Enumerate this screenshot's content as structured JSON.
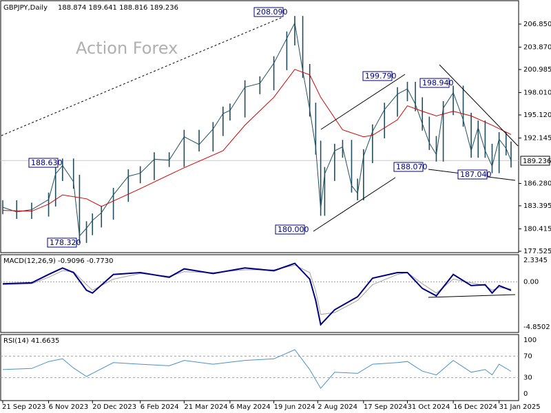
{
  "watermark": "Action Forex",
  "colors": {
    "price": "#1f4e5f",
    "ma": "#d40000",
    "macd": "#000080",
    "signal": "#a0a0a0",
    "rsi": "#4a90c8",
    "annotation": "#000080"
  },
  "chart_data": [
    {
      "type": "line",
      "panel": "price",
      "title": "GBPJPY,Daily",
      "ohlc_header": "188.874 189.641 188.816 189.236",
      "current_price": "189.236",
      "y_ticks": [
        "206.850",
        "203.870",
        "200.985",
        "198.010",
        "195.120",
        "192.145",
        "189.236",
        "186.280",
        "183.395",
        "180.415",
        "177.525"
      ],
      "ylim": [
        177.525,
        206.85
      ],
      "x_ticks": [
        "21 Sep 2023",
        "6 Nov 2023",
        "20 Dec 2023",
        "6 Feb 2024",
        "21 Mar 2024",
        "6 May 2024",
        "19 Jun 2024",
        "2 Aug 2024",
        "17 Sep 2024",
        "31 Oct 2024",
        "16 Dec 2024",
        "31 Jan 2025"
      ],
      "close": [
        {
          "x": "21 Sep 2023",
          "y": 183.2
        },
        {
          "x": "5 Oct 2023",
          "y": 182.6
        },
        {
          "x": "20 Oct 2023",
          "y": 182.9
        },
        {
          "x": "6 Nov 2023",
          "y": 184.2
        },
        {
          "x": "13 Nov 2023",
          "y": 187.5
        },
        {
          "x": "20 Nov 2023",
          "y": 188.6
        },
        {
          "x": "1 Dec 2023",
          "y": 186.5
        },
        {
          "x": "7 Dec 2023",
          "y": 179.5
        },
        {
          "x": "14 Dec 2023",
          "y": 180.5
        },
        {
          "x": "20 Dec 2023",
          "y": 181.5
        },
        {
          "x": "29 Dec 2023",
          "y": 182.5
        },
        {
          "x": "10 Jan 2024",
          "y": 184.8
        },
        {
          "x": "25 Jan 2024",
          "y": 187.2
        },
        {
          "x": "6 Feb 2024",
          "y": 187.6
        },
        {
          "x": "20 Feb 2024",
          "y": 189.4
        },
        {
          "x": "6 Mar 2024",
          "y": 189.3
        },
        {
          "x": "21 Mar 2024",
          "y": 192.3
        },
        {
          "x": "5 Apr 2024",
          "y": 191.3
        },
        {
          "x": "19 Apr 2024",
          "y": 193.3
        },
        {
          "x": "29 Apr 2024",
          "y": 195.3
        },
        {
          "x": "6 May 2024",
          "y": 195.7
        },
        {
          "x": "21 May 2024",
          "y": 198.7
        },
        {
          "x": "5 Jun 2024",
          "y": 199.2
        },
        {
          "x": "19 Jun 2024",
          "y": 201.8
        },
        {
          "x": "2 Jul 2024",
          "y": 205.0
        },
        {
          "x": "10 Jul 2024",
          "y": 207.0
        },
        {
          "x": "18 Jul 2024",
          "y": 200.8
        },
        {
          "x": "25 Jul 2024",
          "y": 195.8
        },
        {
          "x": "31 Jul 2024",
          "y": 190.9
        },
        {
          "x": "5 Aug 2024",
          "y": 183.0
        },
        {
          "x": "9 Aug 2024",
          "y": 187.5
        },
        {
          "x": "19 Aug 2024",
          "y": 190.5
        },
        {
          "x": "27 Aug 2024",
          "y": 191.0
        },
        {
          "x": "5 Sep 2024",
          "y": 186.0
        },
        {
          "x": "11 Sep 2024",
          "y": 185.0
        },
        {
          "x": "17 Sep 2024",
          "y": 189.8
        },
        {
          "x": "26 Sep 2024",
          "y": 193.0
        },
        {
          "x": "8 Oct 2024",
          "y": 195.8
        },
        {
          "x": "21 Oct 2024",
          "y": 197.8
        },
        {
          "x": "31 Oct 2024",
          "y": 198.5
        },
        {
          "x": "8 Nov 2024",
          "y": 196.5
        },
        {
          "x": "15 Nov 2024",
          "y": 194.0
        },
        {
          "x": "22 Nov 2024",
          "y": 191.5
        },
        {
          "x": "29 Nov 2024",
          "y": 190.0
        },
        {
          "x": "6 Dec 2024",
          "y": 196.0
        },
        {
          "x": "16 Dec 2024",
          "y": 198.0
        },
        {
          "x": "26 Dec 2024",
          "y": 194.5
        },
        {
          "x": "3 Jan 2025",
          "y": 190.5
        },
        {
          "x": "10 Jan 2025",
          "y": 193.5
        },
        {
          "x": "17 Jan 2025",
          "y": 190.5
        },
        {
          "x": "24 Jan 2025",
          "y": 188.5
        },
        {
          "x": "31 Jan 2025",
          "y": 192.0
        },
        {
          "x": "7 Feb 2025",
          "y": 190.8
        },
        {
          "x": "12 Feb 2025",
          "y": 189.236
        }
      ],
      "ma": [
        {
          "x": "21 Sep 2023",
          "y": 182.8
        },
        {
          "x": "20 Oct 2023",
          "y": 182.7
        },
        {
          "x": "6 Nov 2023",
          "y": 183.6
        },
        {
          "x": "20 Nov 2023",
          "y": 184.8
        },
        {
          "x": "14 Dec 2023",
          "y": 184.3
        },
        {
          "x": "29 Dec 2023",
          "y": 183.3
        },
        {
          "x": "6 Feb 2024",
          "y": 185.6
        },
        {
          "x": "6 Mar 2024",
          "y": 187.4
        },
        {
          "x": "21 Mar 2024",
          "y": 188.3
        },
        {
          "x": "29 Apr 2024",
          "y": 190.5
        },
        {
          "x": "21 May 2024",
          "y": 193.8
        },
        {
          "x": "19 Jun 2024",
          "y": 197.4
        },
        {
          "x": "10 Jul 2024",
          "y": 201.0
        },
        {
          "x": "25 Jul 2024",
          "y": 200.3
        },
        {
          "x": "5 Aug 2024",
          "y": 197.4
        },
        {
          "x": "27 Aug 2024",
          "y": 193.2
        },
        {
          "x": "17 Sep 2024",
          "y": 192.3
        },
        {
          "x": "26 Sep 2024",
          "y": 192.5
        },
        {
          "x": "21 Oct 2024",
          "y": 194.5
        },
        {
          "x": "31 Oct 2024",
          "y": 196.3
        },
        {
          "x": "15 Nov 2024",
          "y": 195.6
        },
        {
          "x": "29 Nov 2024",
          "y": 195.0
        },
        {
          "x": "16 Dec 2024",
          "y": 195.6
        },
        {
          "x": "3 Jan 2025",
          "y": 195.0
        },
        {
          "x": "24 Jan 2025",
          "y": 193.8
        },
        {
          "x": "12 Feb 2025",
          "y": 192.6
        }
      ],
      "annotations": [
        {
          "label": "208.090",
          "x": "10 Jul 2024",
          "y": 208.09
        },
        {
          "label": "188.630",
          "x": "20 Nov 2023",
          "y": 188.63
        },
        {
          "label": "178.320",
          "x": "7 Dec 2023",
          "y": 178.32
        },
        {
          "label": "199.790",
          "x": "31 Oct 2024",
          "y": 199.79
        },
        {
          "label": "198.940",
          "x": "16 Dec 2024",
          "y": 198.94
        },
        {
          "label": "188.070",
          "x": "29 Nov 2024",
          "y": 188.07
        },
        {
          "label": "187.040",
          "x": "24 Jan 2025",
          "y": 187.04
        },
        {
          "label": "180.000",
          "x": "5 Aug 2024",
          "y": 180.0
        }
      ]
    },
    {
      "type": "line",
      "panel": "macd",
      "title": "MACD(12,26,9) -0.9096 -0.7730",
      "y_ticks": [
        "2.3345",
        "0.00",
        "-4.8502"
      ],
      "ylim": [
        -4.8502,
        2.3345
      ],
      "macd": [
        {
          "x": "21 Sep 2023",
          "y": -0.2
        },
        {
          "x": "20 Oct 2023",
          "y": -0.1
        },
        {
          "x": "6 Nov 2023",
          "y": 0.8
        },
        {
          "x": "20 Nov 2023",
          "y": 1.5
        },
        {
          "x": "1 Dec 2023",
          "y": 1.0
        },
        {
          "x": "14 Dec 2023",
          "y": -0.9
        },
        {
          "x": "20 Dec 2023",
          "y": -1.2
        },
        {
          "x": "10 Jan 2024",
          "y": 0.8
        },
        {
          "x": "6 Feb 2024",
          "y": 1.0
        },
        {
          "x": "6 Mar 2024",
          "y": 0.5
        },
        {
          "x": "21 Mar 2024",
          "y": 1.4
        },
        {
          "x": "19 Apr 2024",
          "y": 0.9
        },
        {
          "x": "21 May 2024",
          "y": 1.5
        },
        {
          "x": "19 Jun 2024",
          "y": 1.2
        },
        {
          "x": "10 Jul 2024",
          "y": 2.0
        },
        {
          "x": "25 Jul 2024",
          "y": 0.3
        },
        {
          "x": "31 Jul 2024",
          "y": -2.0
        },
        {
          "x": "5 Aug 2024",
          "y": -4.6
        },
        {
          "x": "19 Aug 2024",
          "y": -3.0
        },
        {
          "x": "11 Sep 2024",
          "y": -1.6
        },
        {
          "x": "26 Sep 2024",
          "y": 0.4
        },
        {
          "x": "21 Oct 2024",
          "y": 1.0
        },
        {
          "x": "31 Oct 2024",
          "y": 1.0
        },
        {
          "x": "15 Nov 2024",
          "y": -0.7
        },
        {
          "x": "29 Nov 2024",
          "y": -1.5
        },
        {
          "x": "16 Dec 2024",
          "y": 0.8
        },
        {
          "x": "3 Jan 2025",
          "y": -0.4
        },
        {
          "x": "17 Jan 2025",
          "y": -0.3
        },
        {
          "x": "24 Jan 2025",
          "y": -1.2
        },
        {
          "x": "31 Jan 2025",
          "y": -0.4
        },
        {
          "x": "12 Feb 2025",
          "y": -0.9096
        }
      ],
      "signal": [
        {
          "x": "21 Sep 2023",
          "y": -0.3
        },
        {
          "x": "20 Oct 2023",
          "y": -0.2
        },
        {
          "x": "6 Nov 2023",
          "y": 0.5
        },
        {
          "x": "20 Nov 2023",
          "y": 1.2
        },
        {
          "x": "1 Dec 2023",
          "y": 1.1
        },
        {
          "x": "14 Dec 2023",
          "y": -0.3
        },
        {
          "x": "20 Dec 2023",
          "y": -0.9
        },
        {
          "x": "10 Jan 2024",
          "y": 0.3
        },
        {
          "x": "6 Feb 2024",
          "y": 0.9
        },
        {
          "x": "6 Mar 2024",
          "y": 0.6
        },
        {
          "x": "21 Mar 2024",
          "y": 1.1
        },
        {
          "x": "19 Apr 2024",
          "y": 1.0
        },
        {
          "x": "21 May 2024",
          "y": 1.3
        },
        {
          "x": "19 Jun 2024",
          "y": 1.3
        },
        {
          "x": "10 Jul 2024",
          "y": 1.8
        },
        {
          "x": "25 Jul 2024",
          "y": 1.0
        },
        {
          "x": "31 Jul 2024",
          "y": -1.0
        },
        {
          "x": "5 Aug 2024",
          "y": -3.5
        },
        {
          "x": "19 Aug 2024",
          "y": -3.3
        },
        {
          "x": "11 Sep 2024",
          "y": -2.0
        },
        {
          "x": "26 Sep 2024",
          "y": -0.3
        },
        {
          "x": "21 Oct 2024",
          "y": 0.8
        },
        {
          "x": "31 Oct 2024",
          "y": 1.0
        },
        {
          "x": "15 Nov 2024",
          "y": -0.2
        },
        {
          "x": "29 Nov 2024",
          "y": -1.2
        },
        {
          "x": "16 Dec 2024",
          "y": 0.3
        },
        {
          "x": "3 Jan 2025",
          "y": -0.1
        },
        {
          "x": "17 Jan 2025",
          "y": -0.4
        },
        {
          "x": "24 Jan 2025",
          "y": -0.9
        },
        {
          "x": "31 Jan 2025",
          "y": -0.6
        },
        {
          "x": "12 Feb 2025",
          "y": -0.773
        }
      ]
    },
    {
      "type": "line",
      "panel": "rsi",
      "title": "RSI(14) 41.6635",
      "y_ticks": [
        "100",
        "70",
        "30",
        "0"
      ],
      "ylim": [
        0,
        100
      ],
      "rsi": [
        {
          "x": "21 Sep 2023",
          "y": 45
        },
        {
          "x": "20 Oct 2023",
          "y": 47
        },
        {
          "x": "6 Nov 2023",
          "y": 60
        },
        {
          "x": "20 Nov 2023",
          "y": 65
        },
        {
          "x": "1 Dec 2023",
          "y": 48
        },
        {
          "x": "14 Dec 2023",
          "y": 32
        },
        {
          "x": "20 Dec 2023",
          "y": 38
        },
        {
          "x": "10 Jan 2024",
          "y": 58
        },
        {
          "x": "6 Feb 2024",
          "y": 55
        },
        {
          "x": "6 Mar 2024",
          "y": 52
        },
        {
          "x": "21 Mar 2024",
          "y": 62
        },
        {
          "x": "19 Apr 2024",
          "y": 55
        },
        {
          "x": "21 May 2024",
          "y": 62
        },
        {
          "x": "19 Jun 2024",
          "y": 65
        },
        {
          "x": "10 Jul 2024",
          "y": 82
        },
        {
          "x": "25 Jul 2024",
          "y": 45
        },
        {
          "x": "5 Aug 2024",
          "y": 10
        },
        {
          "x": "19 Aug 2024",
          "y": 40
        },
        {
          "x": "11 Sep 2024",
          "y": 38
        },
        {
          "x": "26 Sep 2024",
          "y": 55
        },
        {
          "x": "21 Oct 2024",
          "y": 58
        },
        {
          "x": "31 Oct 2024",
          "y": 60
        },
        {
          "x": "15 Nov 2024",
          "y": 42
        },
        {
          "x": "29 Nov 2024",
          "y": 35
        },
        {
          "x": "16 Dec 2024",
          "y": 62
        },
        {
          "x": "3 Jan 2025",
          "y": 40
        },
        {
          "x": "17 Jan 2025",
          "y": 45
        },
        {
          "x": "24 Jan 2025",
          "y": 35
        },
        {
          "x": "31 Jan 2025",
          "y": 55
        },
        {
          "x": "12 Feb 2025",
          "y": 41.6635
        }
      ]
    }
  ]
}
